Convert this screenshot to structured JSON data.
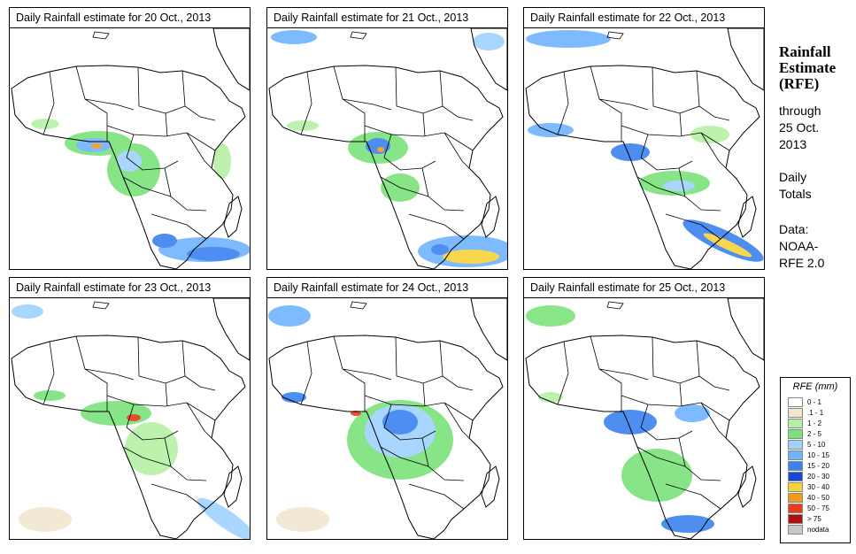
{
  "panels": [
    {
      "title": "Daily Rainfall estimate for  20 Oct., 2013"
    },
    {
      "title": "Daily Rainfall estimate for  21 Oct., 2013"
    },
    {
      "title": "Daily Rainfall estimate for  22 Oct., 2013"
    },
    {
      "title": "Daily Rainfall estimate for  23 Oct., 2013"
    },
    {
      "title": "Daily Rainfall estimate for  24 Oct., 2013"
    },
    {
      "title": "Daily Rainfall estimate for  25 Oct., 2013"
    }
  ],
  "side": {
    "title_line1": "Rainfall",
    "title_line2": "Estimate",
    "title_line3": "(RFE)",
    "through": "through",
    "date_line1": "25 Oct.",
    "date_line2": "2013",
    "totals_line1": "Daily",
    "totals_line2": "Totals",
    "data_line1": "Data:",
    "data_line2": "NOAA-",
    "data_line3": "RFE 2.0"
  },
  "legend": {
    "title": "RFE (mm)",
    "items": [
      {
        "label": "0 - 1",
        "color": "#ffffff"
      },
      {
        "label": ".1 - 1",
        "color": "#f2e6cf"
      },
      {
        "label": "1 - 2",
        "color": "#b6f0a6"
      },
      {
        "label": "2 - 5",
        "color": "#7be27b"
      },
      {
        "label": "5 - 10",
        "color": "#9fd2ff"
      },
      {
        "label": "10 - 15",
        "color": "#6fb3ff"
      },
      {
        "label": "15 - 20",
        "color": "#3b82f0"
      },
      {
        "label": "20 - 30",
        "color": "#1747d4"
      },
      {
        "label": "30 - 40",
        "color": "#f8d23a"
      },
      {
        "label": "40 - 50",
        "color": "#f39a1e"
      },
      {
        "label": "50 - 75",
        "color": "#e83d16"
      },
      {
        "label": "> 75",
        "color": "#b10f0f"
      },
      {
        "label": "nodata",
        "color": "#c8c8c8"
      }
    ]
  }
}
